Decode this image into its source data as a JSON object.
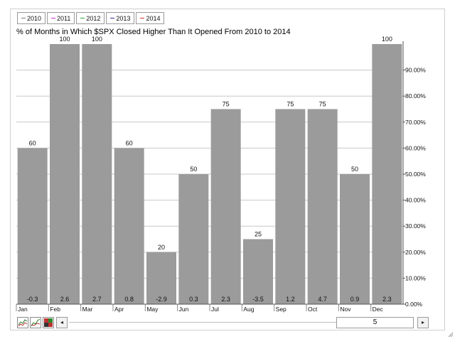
{
  "legend": [
    {
      "label": "2010",
      "color": "#7d7d7d"
    },
    {
      "label": "2011",
      "color": "#cc33cc"
    },
    {
      "label": "2012",
      "color": "#33aa33"
    },
    {
      "label": "2013",
      "color": "#333399"
    },
    {
      "label": "2014",
      "color": "#dd3333"
    }
  ],
  "chart_data": {
    "type": "bar",
    "title": "% of Months in Which $SPX Closed Higher Than It Opened From 2010 to 2014",
    "categories": [
      "Jan",
      "Feb",
      "Mar",
      "Apr",
      "May",
      "Jun",
      "Jul",
      "Aug",
      "Sep",
      "Oct",
      "Nov",
      "Dec"
    ],
    "values": [
      60,
      100,
      100,
      60,
      20,
      50,
      75,
      25,
      75,
      75,
      50,
      100
    ],
    "value_labels": [
      "60",
      "100",
      "100",
      "60",
      "20",
      "50",
      "75",
      "25",
      "75",
      "75",
      "50",
      "100"
    ],
    "bottom_labels": [
      "-0.3",
      "2.6",
      "2.7",
      "0.8",
      "-2.9",
      "0.3",
      "2.3",
      "-3.5",
      "1.2",
      "4.7",
      "0.9",
      "2.3"
    ],
    "y_ticks": [
      0,
      10,
      20,
      30,
      40,
      50,
      60,
      70,
      80,
      90
    ],
    "y_tick_labels": [
      "0.00%",
      "10.00%",
      "20.00%",
      "30.00%",
      "40.00%",
      "50.00%",
      "60.00%",
      "70.00%",
      "80.00%",
      "90.00%"
    ],
    "ylim": [
      0,
      100
    ],
    "y_axis_position": "right",
    "grid": true,
    "bar_color": "#9b9b9b",
    "xlabel": "",
    "ylabel": ""
  },
  "toolbar": {
    "scroll_left_glyph": "◂",
    "scroll_right_glyph": "▸",
    "scroll_value": "5"
  }
}
